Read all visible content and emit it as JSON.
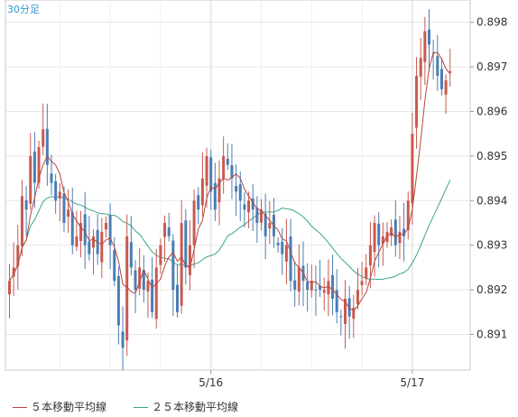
{
  "chart_data": {
    "type": "candlestick",
    "title": "30分足",
    "y_ticks": [
      "0.898",
      "0.897",
      "0.896",
      "0.895",
      "0.894",
      "0.893",
      "0.892",
      "0.891"
    ],
    "y_tick_values": [
      0.898,
      0.897,
      0.896,
      0.895,
      0.894,
      0.893,
      0.892,
      0.891
    ],
    "ylim": [
      0.8902,
      0.8985
    ],
    "x_ticks": [
      "5/16",
      "5/17"
    ],
    "x_tick_index": [
      48,
      96
    ],
    "candle_count": 106,
    "up_color": "#c85a50",
    "down_color": "#4a7db5",
    "ma5_color": "#b5473f",
    "ma25_color": "#3aa585",
    "grid": true,
    "legend": [
      {
        "label": "５本移動平均線",
        "color": "#b5473f"
      },
      {
        "label": "２５本移動平均線",
        "color": "#3aa585"
      }
    ],
    "closes": [
      0.8922,
      0.8925,
      0.893,
      0.8941,
      0.8938,
      0.895,
      0.8944,
      0.8952,
      0.8956,
      0.8948,
      0.8944,
      0.894,
      0.8942,
      0.8935,
      0.8938,
      0.893,
      0.8932,
      0.8935,
      0.893,
      0.8928,
      0.8932,
      0.8928,
      0.8933,
      0.8935,
      0.893,
      0.8922,
      0.8912,
      0.8907,
      0.8932,
      0.8925,
      0.892,
      0.8925,
      0.892,
      0.8922,
      0.8915,
      0.8925,
      0.893,
      0.8935,
      0.8932,
      0.892,
      0.8915,
      0.8935,
      0.8925,
      0.893,
      0.894,
      0.8938,
      0.8945,
      0.895,
      0.8942,
      0.8938,
      0.8945,
      0.895,
      0.8948,
      0.8945,
      0.8942,
      0.894,
      0.8938,
      0.894,
      0.8938,
      0.8935,
      0.8938,
      0.8932,
      0.8935,
      0.8932,
      0.893,
      0.8928,
      0.893,
      0.8922,
      0.892,
      0.8925,
      0.8922,
      0.892,
      0.8922,
      0.892,
      0.892,
      0.892,
      0.8922,
      0.8918,
      0.8915,
      0.8914,
      0.8918,
      0.8914,
      0.8916,
      0.892,
      0.8922,
      0.8925,
      0.893,
      0.8935,
      0.893,
      0.8932,
      0.8933,
      0.8934,
      0.893,
      0.8933,
      0.8932,
      0.894,
      0.8955,
      0.8968,
      0.8972,
      0.8978,
      0.8975,
      0.8973,
      0.8968,
      0.8965,
      0.8967,
      0.8969
    ]
  }
}
